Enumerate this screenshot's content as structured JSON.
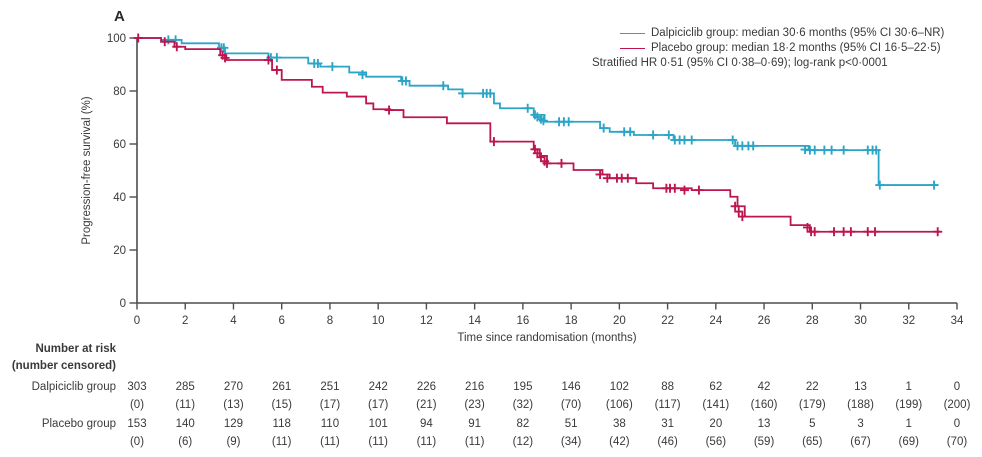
{
  "panel_label": "A",
  "colors": {
    "dalpiciclib": "#2BA5C7",
    "placebo": "#BD1550",
    "axis": "#4D4D4D",
    "text": "#3A3A3A"
  },
  "legend": {
    "dalpiciclib_label": "Dalpiciclib group: median 30·6 months (95% CI 30·6–NR)",
    "placebo_label": "Placebo group: median 18·2 months (95% CI 16·5–22·5)",
    "stratified_note": "Stratified HR 0·51 (95% CI 0·38–0·69); log-rank p<0·0001"
  },
  "chart_data": {
    "type": "line",
    "subtype": "kaplan-meier-step",
    "title": "",
    "xlabel": "Time since randomisation (months)",
    "ylabel": "Progression-free survival (%)",
    "xlim": [
      0,
      34
    ],
    "ylim": [
      0,
      100
    ],
    "xticks": [
      0,
      2,
      4,
      6,
      8,
      10,
      12,
      14,
      16,
      18,
      20,
      22,
      24,
      26,
      28,
      30,
      32,
      34
    ],
    "yticks": [
      0,
      20,
      40,
      60,
      80,
      100
    ],
    "grid": false,
    "legend_position": "top-right",
    "series": [
      {
        "name": "Dalpiciclib group",
        "color": "#2BA5C7",
        "points": [
          [
            0,
            100
          ],
          [
            1.0,
            99.3
          ],
          [
            1.85,
            98.0
          ],
          [
            3.4,
            96.3
          ],
          [
            3.65,
            94.2
          ],
          [
            5.45,
            92.6
          ],
          [
            7.1,
            90.4
          ],
          [
            7.6,
            89.2
          ],
          [
            8.8,
            87.0
          ],
          [
            9.5,
            85.4
          ],
          [
            10.95,
            83.8
          ],
          [
            11.3,
            82.0
          ],
          [
            12.9,
            80.6
          ],
          [
            13.5,
            79.1
          ],
          [
            14.8,
            75.3
          ],
          [
            15.05,
            73.5
          ],
          [
            16.45,
            71.0
          ],
          [
            16.9,
            68.4
          ],
          [
            19.2,
            66.0
          ],
          [
            19.6,
            64.6
          ],
          [
            20.6,
            63.4
          ],
          [
            22.25,
            61.5
          ],
          [
            24.8,
            59.3
          ],
          [
            27.85,
            57.7
          ],
          [
            30.75,
            44.5
          ],
          [
            33.2,
            44.5
          ]
        ],
        "censor_marks": [
          [
            1.3,
            99.3
          ],
          [
            1.6,
            99.3
          ],
          [
            3.5,
            96.3
          ],
          [
            3.6,
            96.3
          ],
          [
            5.55,
            92.6
          ],
          [
            5.8,
            92.6
          ],
          [
            7.35,
            90.4
          ],
          [
            7.5,
            90.4
          ],
          [
            8.1,
            89.2
          ],
          [
            9.35,
            86.2
          ],
          [
            11.0,
            83.8
          ],
          [
            11.15,
            83.8
          ],
          [
            12.7,
            82.0
          ],
          [
            13.5,
            79.1
          ],
          [
            14.35,
            79.1
          ],
          [
            14.5,
            79.1
          ],
          [
            14.65,
            79.1
          ],
          [
            16.2,
            73.5
          ],
          [
            16.5,
            71.0
          ],
          [
            16.6,
            70.2
          ],
          [
            16.75,
            69.4
          ],
          [
            16.85,
            68.8
          ],
          [
            17.5,
            68.4
          ],
          [
            17.7,
            68.4
          ],
          [
            17.9,
            68.4
          ],
          [
            19.35,
            66.0
          ],
          [
            20.2,
            64.6
          ],
          [
            20.45,
            64.6
          ],
          [
            21.4,
            63.4
          ],
          [
            22.05,
            63.4
          ],
          [
            22.3,
            61.5
          ],
          [
            22.5,
            61.5
          ],
          [
            22.7,
            61.5
          ],
          [
            23.0,
            61.5
          ],
          [
            24.7,
            61.5
          ],
          [
            24.9,
            59.3
          ],
          [
            25.1,
            59.3
          ],
          [
            25.35,
            59.3
          ],
          [
            25.55,
            59.3
          ],
          [
            27.7,
            57.9
          ],
          [
            27.9,
            57.7
          ],
          [
            28.1,
            57.7
          ],
          [
            28.5,
            57.7
          ],
          [
            28.8,
            57.7
          ],
          [
            29.3,
            57.7
          ],
          [
            30.3,
            57.7
          ],
          [
            30.5,
            57.7
          ],
          [
            30.65,
            57.7
          ],
          [
            30.8,
            44.5
          ],
          [
            33.05,
            44.5
          ]
        ]
      },
      {
        "name": "Placebo group",
        "color": "#BD1550",
        "points": [
          [
            0,
            100
          ],
          [
            1.0,
            98.6
          ],
          [
            1.55,
            96.7
          ],
          [
            2.0,
            95.8
          ],
          [
            3.45,
            93.5
          ],
          [
            3.7,
            91.7
          ],
          [
            5.6,
            87.9
          ],
          [
            6.0,
            84.2
          ],
          [
            7.25,
            81.6
          ],
          [
            7.7,
            79.4
          ],
          [
            8.7,
            77.9
          ],
          [
            9.5,
            75.3
          ],
          [
            9.8,
            73.1
          ],
          [
            10.5,
            72.8
          ],
          [
            11.05,
            70.1
          ],
          [
            12.85,
            67.8
          ],
          [
            14.65,
            60.9
          ],
          [
            16.45,
            58.0
          ],
          [
            16.7,
            55.5
          ],
          [
            17.0,
            52.7
          ],
          [
            18.1,
            50.2
          ],
          [
            19.3,
            48.5
          ],
          [
            19.6,
            47.1
          ],
          [
            20.7,
            45.2
          ],
          [
            21.4,
            43.3
          ],
          [
            23.0,
            42.6
          ],
          [
            24.6,
            40.1
          ],
          [
            24.9,
            36.5
          ],
          [
            25.2,
            32.6
          ],
          [
            27.1,
            29.4
          ],
          [
            27.9,
            26.9
          ],
          [
            33.3,
            26.9
          ]
        ],
        "censor_marks": [
          [
            0.05,
            100
          ],
          [
            1.15,
            98.6
          ],
          [
            1.65,
            96.7
          ],
          [
            3.55,
            93.5
          ],
          [
            3.65,
            92.5
          ],
          [
            5.45,
            91.7
          ],
          [
            5.8,
            87.9
          ],
          [
            10.45,
            72.8
          ],
          [
            14.8,
            60.9
          ],
          [
            16.5,
            58.0
          ],
          [
            16.6,
            56.5
          ],
          [
            16.75,
            55.0
          ],
          [
            16.9,
            53.5
          ],
          [
            17.0,
            52.7
          ],
          [
            17.6,
            52.7
          ],
          [
            19.2,
            48.5
          ],
          [
            19.5,
            47.1
          ],
          [
            19.9,
            47.1
          ],
          [
            20.1,
            47.1
          ],
          [
            20.35,
            47.1
          ],
          [
            21.95,
            43.3
          ],
          [
            22.1,
            43.3
          ],
          [
            22.3,
            43.3
          ],
          [
            22.7,
            42.6
          ],
          [
            23.3,
            42.6
          ],
          [
            24.8,
            36.5
          ],
          [
            24.95,
            34.5
          ],
          [
            25.1,
            32.6
          ],
          [
            27.8,
            28.5
          ],
          [
            27.95,
            26.9
          ],
          [
            28.1,
            26.9
          ],
          [
            28.9,
            26.9
          ],
          [
            29.3,
            26.9
          ],
          [
            29.6,
            26.9
          ],
          [
            30.3,
            26.9
          ],
          [
            30.6,
            26.9
          ],
          [
            33.2,
            26.9
          ]
        ]
      }
    ]
  },
  "risk_table": {
    "header_line1": "Number at risk",
    "header_line2": "(number censored)",
    "months": [
      0,
      2,
      4,
      6,
      8,
      10,
      12,
      14,
      16,
      18,
      20,
      22,
      24,
      26,
      28,
      30,
      32,
      34
    ],
    "rows": [
      {
        "label": "Dalpiciclib group",
        "at_risk": [
          303,
          285,
          270,
          261,
          251,
          242,
          226,
          216,
          195,
          146,
          102,
          88,
          62,
          42,
          22,
          13,
          1,
          0
        ],
        "censored": [
          "(0)",
          "(11)",
          "(13)",
          "(15)",
          "(17)",
          "(17)",
          "(21)",
          "(23)",
          "(32)",
          "(70)",
          "(106)",
          "(117)",
          "(141)",
          "(160)",
          "(179)",
          "(188)",
          "(199)",
          "(200)"
        ]
      },
      {
        "label": "Placebo group",
        "at_risk": [
          153,
          140,
          129,
          118,
          110,
          101,
          94,
          91,
          82,
          51,
          38,
          31,
          20,
          13,
          5,
          3,
          1,
          0
        ],
        "censored": [
          "(0)",
          "(6)",
          "(9)",
          "(11)",
          "(11)",
          "(11)",
          "(11)",
          "(11)",
          "(12)",
          "(34)",
          "(42)",
          "(46)",
          "(56)",
          "(59)",
          "(65)",
          "(67)",
          "(69)",
          "(70)"
        ]
      }
    ]
  }
}
